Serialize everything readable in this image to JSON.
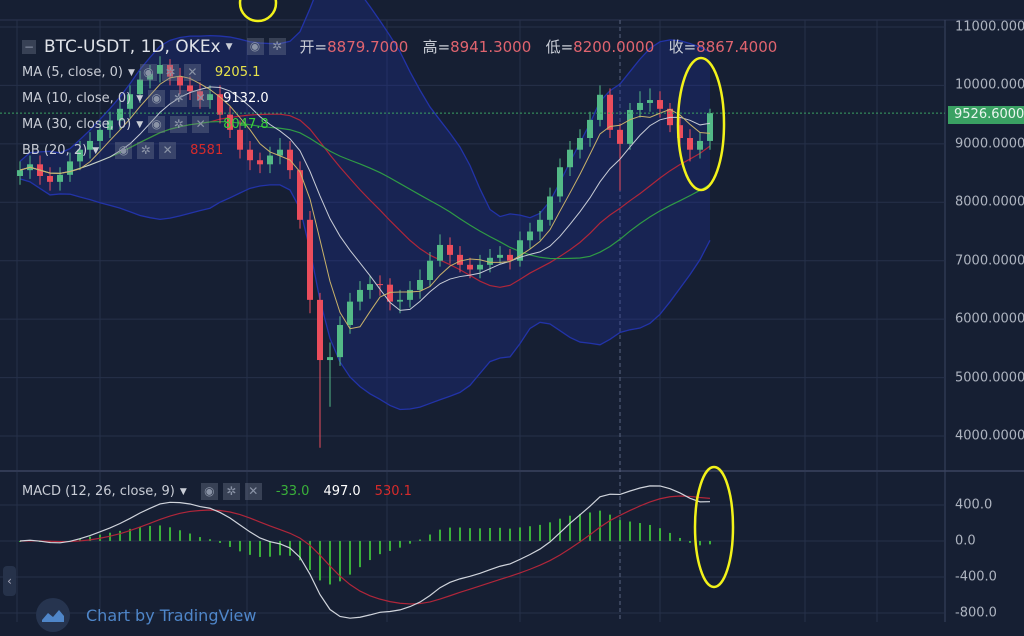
{
  "header": {
    "symbol": "BTC-USDT, 1D, OKEx",
    "open_label": "开=",
    "open": "8879.7000",
    "high_label": "高=",
    "high": "8941.3000",
    "low_label": "低=",
    "low": "8200.0000",
    "close_label": "收=",
    "close": "8867.4000"
  },
  "indicators": [
    {
      "label": "MA (5, close, 0)",
      "value": "9205.1",
      "color": "#e8e34a"
    },
    {
      "label": "MA (10, close, 0)",
      "value": "9132.0",
      "color": "#ffffff"
    },
    {
      "label": "MA (30, close, 0)",
      "value": "8047.8",
      "color": "#3ad13a"
    },
    {
      "label": "BB (20, 2)",
      "value": "8581",
      "color": "#d62b2b"
    }
  ],
  "macd": {
    "label": "MACD (12, 26, close, 9)",
    "hist": "-33.0",
    "macd": "497.0",
    "signal": "530.1",
    "colors": {
      "hist": "#3ab03a",
      "macd": "#ffffff",
      "signal": "#d62b2b"
    }
  },
  "last_price": "9526.6000",
  "watermark": "Chart by TradingView",
  "collapse_glyph": "‹",
  "colors": {
    "up": "#53b987",
    "down": "#eb4d5c",
    "background": "#161f33",
    "ma5": "#c9b26a",
    "ma10": "#c8ccd6",
    "ma30": "#2f9b45",
    "bb_basis": "#b0263a",
    "bb_band": "#2233a8"
  },
  "chart_data": {
    "type": "candlestick",
    "price_axis": {
      "range": [
        3600,
        11200
      ],
      "ticks": [
        "11000.0000",
        "10000.0000",
        "9000.0000",
        "8000.0000",
        "7000.0000",
        "6000.0000",
        "5000.0000",
        "4000.0000"
      ]
    },
    "macd_axis": {
      "range": [
        -900,
        900
      ],
      "ticks": [
        "400.0",
        "0.0",
        "-400.0",
        "-800.0"
      ]
    },
    "grid": true,
    "candles": [
      [
        8450,
        8700,
        8300,
        8550
      ],
      [
        8550,
        8800,
        8400,
        8650
      ],
      [
        8650,
        8800,
        8300,
        8450
      ],
      [
        8450,
        8600,
        8200,
        8350
      ],
      [
        8350,
        8600,
        8200,
        8470
      ],
      [
        8470,
        8850,
        8350,
        8700
      ],
      [
        8700,
        9050,
        8550,
        8900
      ],
      [
        8900,
        9200,
        8750,
        9050
      ],
      [
        9050,
        9400,
        8900,
        9240
      ],
      [
        9240,
        9550,
        9100,
        9400
      ],
      [
        9400,
        9750,
        9250,
        9600
      ],
      [
        9600,
        10000,
        9450,
        9850
      ],
      [
        9850,
        10250,
        9700,
        10100
      ],
      [
        10100,
        10350,
        9950,
        10200
      ],
      [
        10200,
        10500,
        10050,
        10350
      ],
      [
        10350,
        10450,
        10000,
        10150
      ],
      [
        10150,
        10300,
        9850,
        10000
      ],
      [
        10000,
        10150,
        9750,
        9900
      ],
      [
        9900,
        10050,
        9600,
        9750
      ],
      [
        9750,
        10000,
        9600,
        9850
      ],
      [
        9850,
        10000,
        9350,
        9500
      ],
      [
        9500,
        9650,
        9100,
        9240
      ],
      [
        9240,
        9400,
        8750,
        8900
      ],
      [
        8900,
        9050,
        8550,
        8720
      ],
      [
        8720,
        8850,
        8500,
        8650
      ],
      [
        8650,
        8950,
        8500,
        8800
      ],
      [
        8800,
        9100,
        8650,
        8900
      ],
      [
        8900,
        9050,
        8400,
        8550
      ],
      [
        8550,
        8700,
        7550,
        7700
      ],
      [
        7700,
        7850,
        6100,
        6330
      ],
      [
        6330,
        6450,
        3800,
        5300
      ],
      [
        5300,
        5600,
        4500,
        5350
      ],
      [
        5350,
        6050,
        5200,
        5900
      ],
      [
        5900,
        6450,
        5750,
        6300
      ],
      [
        6300,
        6650,
        6150,
        6500
      ],
      [
        6500,
        6750,
        6350,
        6600
      ],
      [
        6600,
        6750,
        6400,
        6590
      ],
      [
        6590,
        6700,
        6150,
        6300
      ],
      [
        6300,
        6500,
        6100,
        6330
      ],
      [
        6330,
        6650,
        6200,
        6500
      ],
      [
        6500,
        6850,
        6350,
        6670
      ],
      [
        6670,
        7150,
        6550,
        7000
      ],
      [
        7000,
        7450,
        6900,
        7270
      ],
      [
        7270,
        7400,
        6950,
        7100
      ],
      [
        7100,
        7250,
        6800,
        6930
      ],
      [
        6930,
        7050,
        6700,
        6850
      ],
      [
        6850,
        7100,
        6700,
        6930
      ],
      [
        6930,
        7200,
        6800,
        7050
      ],
      [
        7050,
        7250,
        6950,
        7100
      ],
      [
        7100,
        7200,
        6850,
        7000
      ],
      [
        7000,
        7500,
        6900,
        7350
      ],
      [
        7350,
        7650,
        7200,
        7500
      ],
      [
        7500,
        7850,
        7350,
        7700
      ],
      [
        7700,
        8250,
        7600,
        8100
      ],
      [
        8100,
        8750,
        8000,
        8600
      ],
      [
        8600,
        9050,
        8450,
        8900
      ],
      [
        8900,
        9250,
        8750,
        9100
      ],
      [
        9100,
        9550,
        8950,
        9410
      ],
      [
        9410,
        10000,
        9300,
        9840
      ],
      [
        9840,
        9950,
        9100,
        9240
      ],
      [
        9240,
        9350,
        8200,
        9000
      ],
      [
        9000,
        9700,
        8900,
        9580
      ],
      [
        9580,
        9900,
        9450,
        9700
      ],
      [
        9700,
        9950,
        9550,
        9750
      ],
      [
        9750,
        9900,
        9450,
        9600
      ],
      [
        9600,
        9700,
        9200,
        9320
      ],
      [
        9320,
        9450,
        8950,
        9100
      ],
      [
        9100,
        9250,
        8700,
        8900
      ],
      [
        8900,
        9200,
        8750,
        9050
      ],
      [
        9050,
        9600,
        8900,
        9526.6
      ]
    ]
  }
}
